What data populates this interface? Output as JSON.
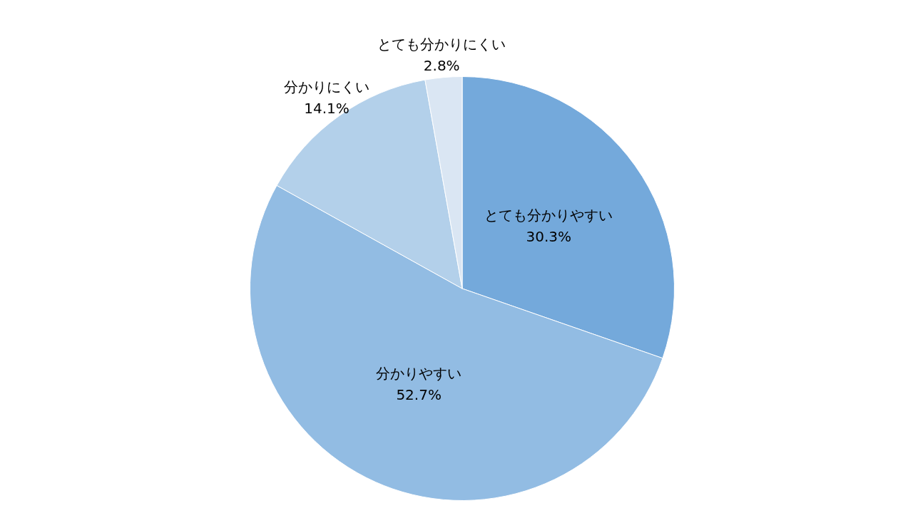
{
  "chart_data": {
    "type": "pie",
    "categories": [
      "とても分かりやすい",
      "分かりやすい",
      "分かりにくい",
      "とても分かりにくい"
    ],
    "values": [
      30.3,
      52.7,
      14.1,
      2.8
    ],
    "value_labels": [
      "30.3%",
      "52.7%",
      "14.1%",
      "2.8%"
    ],
    "colors": [
      "#74a9db",
      "#92bce3",
      "#b3d0ea",
      "#dae6f3"
    ],
    "data_labels": true
  }
}
